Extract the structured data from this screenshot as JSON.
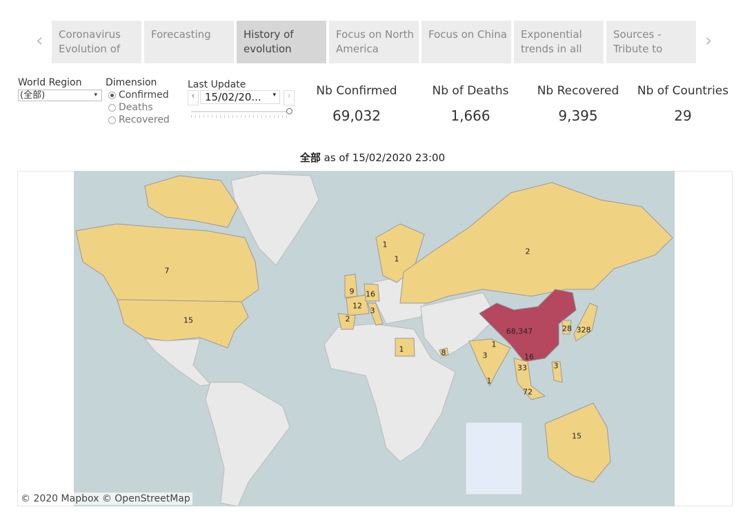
{
  "tabs": [
    {
      "label": "Coronavirus Evolution of",
      "selected": false
    },
    {
      "label": "Forecasting",
      "selected": false
    },
    {
      "label": "History of evolution",
      "selected": true
    },
    {
      "label": "Focus on North America",
      "selected": false
    },
    {
      "label": "Focus on China",
      "selected": false
    },
    {
      "label": "Exponential trends in all",
      "selected": false
    },
    {
      "label": "Sources - Tribute to",
      "selected": false
    }
  ],
  "filters": {
    "world_region_label": "World Region",
    "world_region_value": "(全部)",
    "dimension_label": "Dimension",
    "dimension_options": [
      "Confirmed",
      "Deaths",
      "Recovered"
    ],
    "dimension_selected": "Confirmed",
    "last_update_label": "Last Update",
    "last_update_value": "15/02/20...",
    "slider_position": 1.0
  },
  "kpis": [
    {
      "label": "Nb Confirmed",
      "value": "69,032"
    },
    {
      "label": "Nb of Deaths",
      "value": "1,666"
    },
    {
      "label": "Nb Recovered",
      "value": "9,395"
    },
    {
      "label": "Nb of Countries",
      "value": "29"
    }
  ],
  "map": {
    "title_bold": "全部",
    "title_rest": " as of 15/02/2020 23:00",
    "attribution": "© 2020 Mapbox © OpenStreetMap",
    "colors": {
      "ocean": "#c5d4d6",
      "land": "#e9e9e9",
      "affected": "#f0d283",
      "china": "#b5485e"
    },
    "labels": [
      "7",
      "15",
      "1",
      "1",
      "2",
      "9",
      "16",
      "12",
      "3",
      "2",
      "68,347",
      "28",
      "328",
      "1",
      "1",
      "8",
      "3",
      "16",
      "3",
      "33",
      "1",
      "72",
      "15"
    ]
  }
}
